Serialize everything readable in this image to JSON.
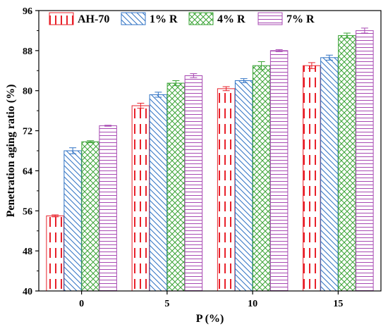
{
  "chart_data": {
    "type": "bar",
    "xlabel": "P (%)",
    "ylabel": "Penetration aging ratio (%)",
    "ylim": [
      40,
      96
    ],
    "yticks": [
      40,
      48,
      56,
      64,
      72,
      80,
      88,
      96
    ],
    "categories": [
      "0",
      "5",
      "10",
      "15"
    ],
    "legend_position": "top",
    "grid": false,
    "series": [
      {
        "name": "AH-70",
        "color": "#e8212a",
        "pattern": "dashed-vertical",
        "values": [
          55.0,
          77.0,
          80.4,
          85.0
        ],
        "errors": [
          0.2,
          0.5,
          0.4,
          0.6
        ]
      },
      {
        "name": "1% R",
        "color": "#2f72c4",
        "pattern": "diagonal-back",
        "values": [
          68.0,
          79.2,
          82.0,
          86.6
        ],
        "errors": [
          0.6,
          0.5,
          0.4,
          0.5
        ]
      },
      {
        "name": "4% R",
        "color": "#3aa335",
        "pattern": "cross-hatch",
        "values": [
          69.8,
          81.5,
          85.0,
          91.0
        ],
        "errors": [
          0.2,
          0.5,
          0.8,
          0.5
        ]
      },
      {
        "name": "7% R",
        "color": "#a84ab3",
        "pattern": "horizontal",
        "values": [
          73.0,
          83.0,
          88.0,
          92.0
        ],
        "errors": [
          0.1,
          0.4,
          0.2,
          0.5
        ]
      }
    ]
  }
}
